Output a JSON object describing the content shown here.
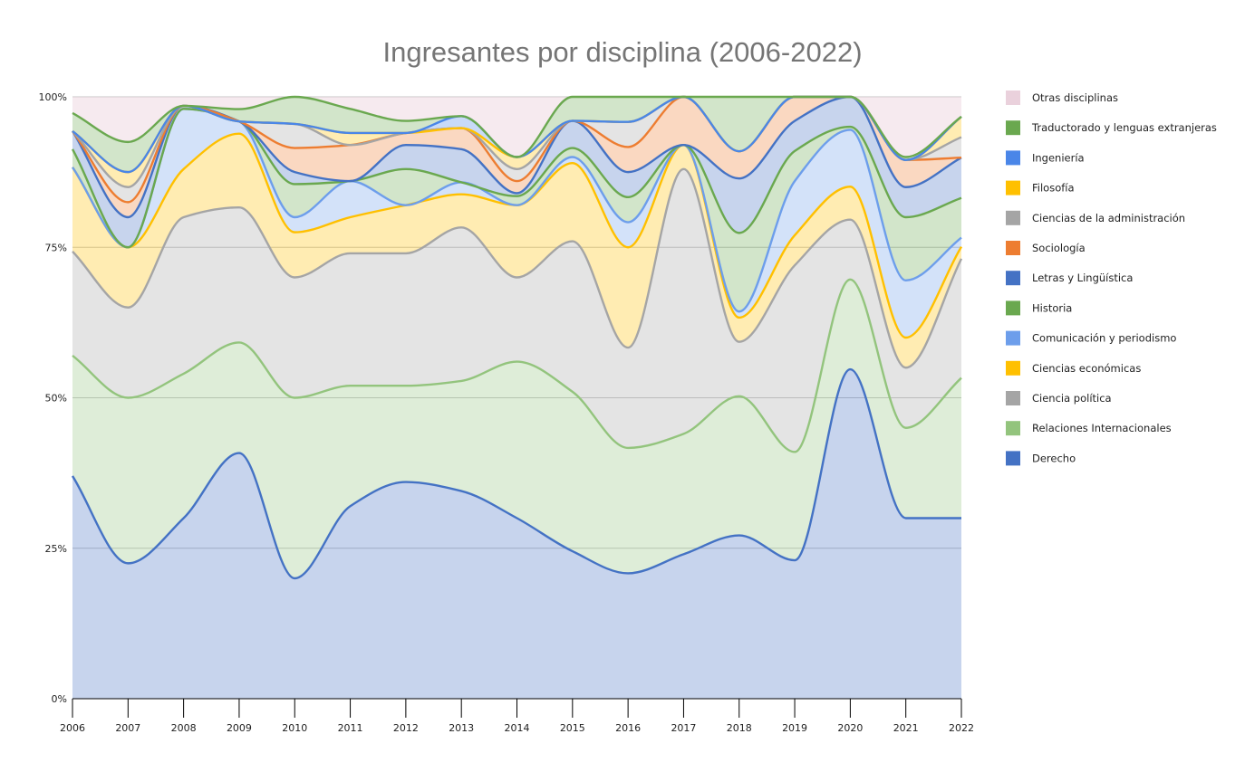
{
  "chart_data": {
    "type": "area",
    "stacked": true,
    "normalized_percent": true,
    "smooth": true,
    "title": "Ingresantes por disciplina (2006-2022)",
    "xlabel": "",
    "ylabel": "",
    "x": [
      "2006",
      "2007",
      "2008",
      "2009",
      "2010",
      "2011",
      "2012",
      "2013",
      "2014",
      "2015",
      "2016",
      "2017",
      "2018",
      "2019",
      "2020",
      "2021",
      "2022"
    ],
    "ylim": [
      0,
      100
    ],
    "y_ticks": [
      "0%",
      "25%",
      "50%",
      "75%",
      "100%"
    ],
    "grid": "horizontal",
    "legend_position": "right",
    "series": [
      {
        "name": "Derecho",
        "color": "#4472C4",
        "values": [
          37,
          22.5,
          30,
          40,
          20,
          32,
          36,
          34.5,
          30,
          24.5,
          20,
          24,
          27,
          23,
          55,
          30,
          30
        ]
      },
      {
        "name": "Relaciones Internacionales",
        "color": "#93C47D",
        "values": [
          20,
          27.5,
          24,
          18,
          30,
          20,
          16,
          18.3,
          26,
          26.5,
          20,
          20,
          23,
          18,
          15,
          15,
          23.3
        ]
      },
      {
        "name": "Ciencia política",
        "color": "#A5A5A5",
        "values": [
          17.3,
          15,
          26,
          22,
          20,
          22,
          22,
          25.5,
          14,
          25,
          16,
          44,
          9,
          31,
          10,
          10,
          19.8
        ]
      },
      {
        "name": "Ciencias económicas",
        "color": "#FFC000",
        "values": [
          14,
          10,
          8,
          12,
          7.5,
          6,
          8,
          5.5,
          12,
          13,
          16,
          4,
          4,
          5,
          5.5,
          5,
          2
        ]
      },
      {
        "name": "Comunicación y periodismo",
        "color": "#6D9EEB",
        "values": [
          0,
          0,
          10,
          2,
          2.5,
          6,
          0,
          2,
          0,
          1,
          4,
          0,
          1,
          9,
          9.5,
          9.5,
          1.5
        ]
      },
      {
        "name": "Historia",
        "color": "#6AA84F",
        "values": [
          3,
          0,
          0,
          0,
          5.5,
          0,
          6,
          0,
          1.5,
          1.5,
          4,
          0,
          13,
          5,
          0.5,
          10.5,
          6.6
        ]
      },
      {
        "name": "Letras y Lingüística",
        "color": "#4472C4",
        "values": [
          3,
          5,
          0.5,
          0,
          2,
          0,
          4,
          5.5,
          0.5,
          4.5,
          4,
          0,
          9,
          5,
          5,
          5,
          6.7
        ]
      },
      {
        "name": "Sociología",
        "color": "#ED7D31",
        "values": [
          0,
          2.5,
          0,
          0,
          4,
          6,
          2,
          3.5,
          2,
          0,
          4,
          8,
          4.5,
          4,
          0,
          4.5,
          0
        ]
      },
      {
        "name": "Ciencias de la administración",
        "color": "#A5A5A5",
        "values": [
          0,
          2.5,
          0,
          0,
          4,
          0,
          0,
          0,
          2,
          0,
          4,
          0,
          0,
          0,
          0,
          0,
          3.4
        ]
      },
      {
        "name": "Filosofía",
        "color": "#FFC000",
        "values": [
          0,
          2.5,
          0,
          0,
          0,
          2,
          0,
          0,
          2,
          0,
          0,
          0,
          0,
          0,
          0,
          0,
          3.4
        ]
      },
      {
        "name": "Ingeniería",
        "color": "#4A86E8",
        "values": [
          0,
          0,
          0,
          0,
          0,
          0,
          0,
          2,
          0,
          0,
          0,
          0,
          0,
          0,
          0,
          0,
          0
        ]
      },
      {
        "name": "Traductorado y lenguas extranjeras",
        "color": "#6AA84F",
        "values": [
          3,
          5,
          0,
          2,
          4.5,
          4,
          2,
          0,
          0,
          4,
          4,
          0,
          9,
          0,
          0,
          0.5,
          0
        ]
      },
      {
        "name": "Otras disciplinas",
        "color": "#EAD1DC",
        "values": [
          2.7,
          7.5,
          1.5,
          2,
          0,
          2,
          4,
          3.2,
          10,
          0,
          0,
          0,
          0,
          0,
          0,
          10,
          3.3
        ]
      }
    ]
  }
}
